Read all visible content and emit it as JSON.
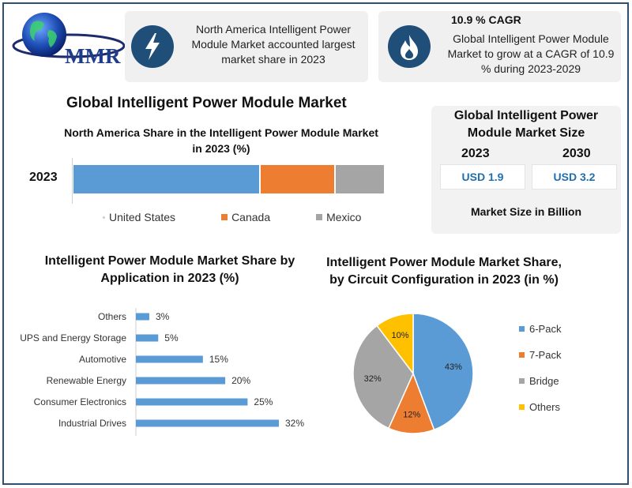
{
  "brand": {
    "logo_text": "MMR"
  },
  "info_cards": {
    "north_america": {
      "icon": "lightning-icon",
      "text": "North America Intelligent Power Module Market accounted largest market share in 2023"
    },
    "cagr": {
      "icon": "flame-icon",
      "heading": "10.9 % CAGR",
      "text": "Global Intelligent Power Module Market to grow at a CAGR of 10.9 % during 2023-2029"
    }
  },
  "main_title": "Global Intelligent Power Module Market",
  "market_size": {
    "title": "Global Intelligent Power Module Market Size",
    "year_start": "2023",
    "year_end": "2030",
    "value_start": "USD 1.9",
    "value_end": "USD 3.2",
    "footer": "Market Size in Billion"
  },
  "colors": {
    "blue": "#5b9bd5",
    "orange": "#ed7d31",
    "gray": "#a5a5a5",
    "yellow": "#ffc000",
    "navy": "#1f4e79"
  },
  "chart_data": [
    {
      "type": "bar",
      "orientation": "horizontal-stacked",
      "title": "North America Share in the Intelligent  Power Module Market in 2023 (%)",
      "categories": [
        "2023"
      ],
      "series": [
        {
          "name": "United States",
          "values": [
            60
          ],
          "color": "#5b9bd5"
        },
        {
          "name": "Canada",
          "values": [
            24
          ],
          "color": "#ed7d31"
        },
        {
          "name": "Mexico",
          "values": [
            16
          ],
          "color": "#a5a5a5"
        }
      ],
      "legend": "bottom"
    },
    {
      "type": "bar",
      "orientation": "horizontal",
      "title": "Intelligent Power Module Market Share by Application in 2023 (%)",
      "categories": [
        "Others",
        "UPS and Energy Storage",
        "Automotive",
        "Renewable Energy",
        "Consumer Electronics",
        "Industrial Drives"
      ],
      "values": [
        3,
        5,
        15,
        20,
        25,
        32
      ],
      "value_labels": [
        "3%",
        "5%",
        "15%",
        "20%",
        "25%",
        "32%"
      ],
      "color": "#5b9bd5"
    },
    {
      "type": "pie",
      "title": "Intelligent Power Module Market Share, by Circuit Configuration in 2023 (in %)",
      "categories": [
        "6-Pack",
        "7-Pack",
        "Bridge",
        "Others"
      ],
      "values": [
        43,
        12,
        32,
        10
      ],
      "value_labels": [
        "43%",
        "12%",
        "32%",
        "10%"
      ],
      "colors": [
        "#5b9bd5",
        "#ed7d31",
        "#a5a5a5",
        "#ffc000"
      ],
      "legend": "right"
    }
  ]
}
